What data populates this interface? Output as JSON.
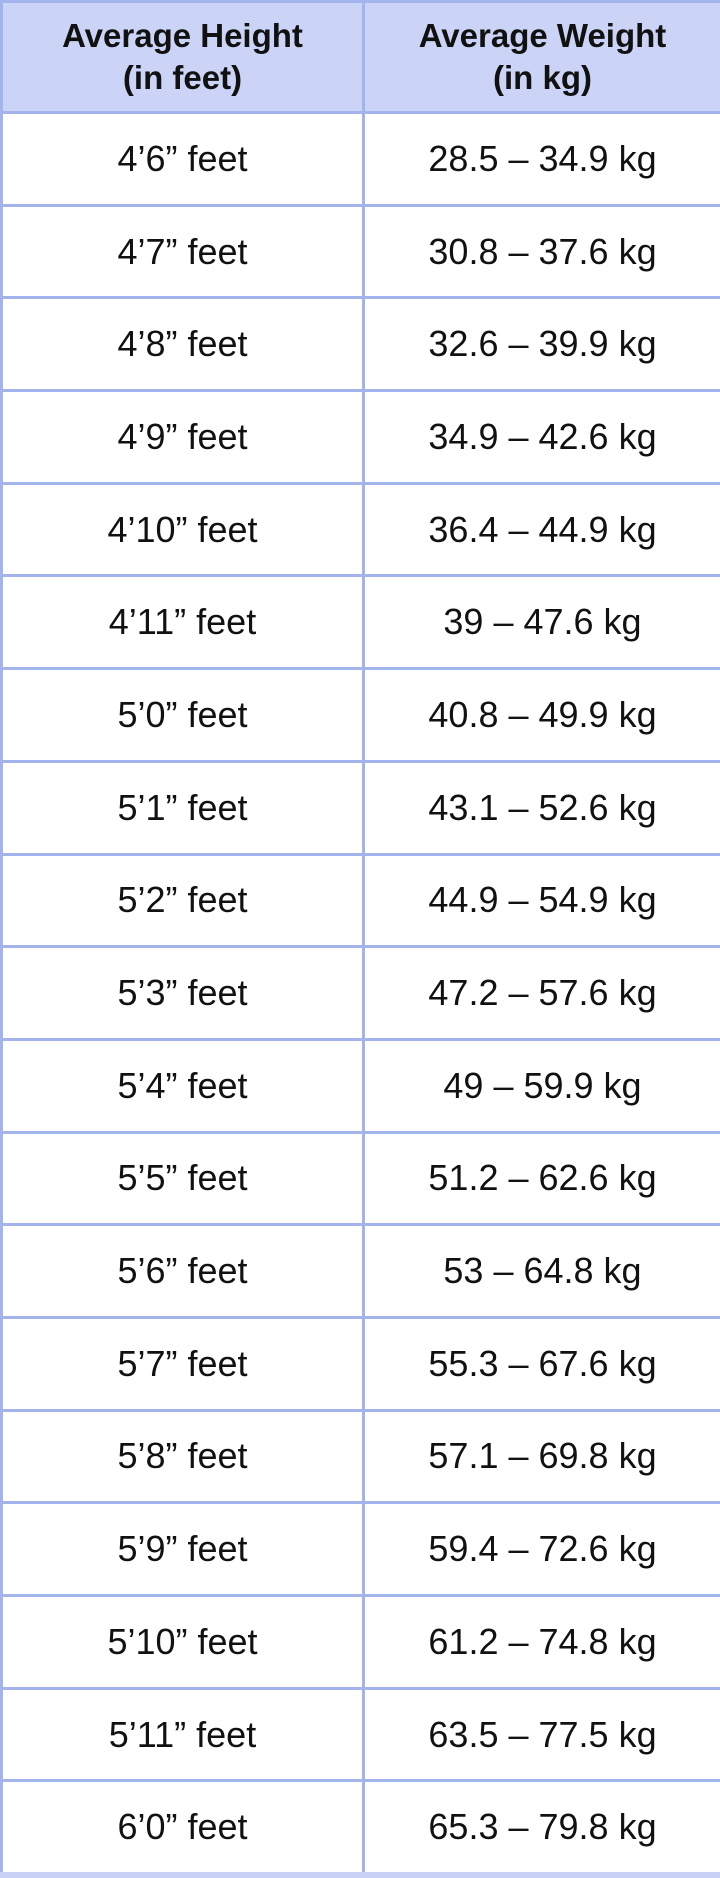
{
  "table": {
    "headers": [
      {
        "line1": "Average Height",
        "line2": "(in feet)"
      },
      {
        "line1": "Average Weight",
        "line2": "(in kg)"
      }
    ],
    "rows": [
      {
        "height": "4’6” feet",
        "weight": "28.5 – 34.9 kg"
      },
      {
        "height": "4’7” feet",
        "weight": "30.8 – 37.6 kg"
      },
      {
        "height": "4’8” feet",
        "weight": "32.6 – 39.9 kg"
      },
      {
        "height": "4’9” feet",
        "weight": "34.9 – 42.6 kg"
      },
      {
        "height": "4’10” feet",
        "weight": "36.4 – 44.9 kg"
      },
      {
        "height": "4’11” feet",
        "weight": "39 – 47.6 kg"
      },
      {
        "height": "5’0” feet",
        "weight": "40.8 – 49.9 kg"
      },
      {
        "height": "5’1” feet",
        "weight": "43.1 – 52.6 kg"
      },
      {
        "height": "5’2” feet",
        "weight": "44.9 – 54.9 kg"
      },
      {
        "height": "5’3” feet",
        "weight": "47.2 – 57.6 kg"
      },
      {
        "height": "5’4” feet",
        "weight": "49 – 59.9 kg"
      },
      {
        "height": "5’5” feet",
        "weight": "51.2 – 62.6 kg"
      },
      {
        "height": "5’6” feet",
        "weight": "53 – 64.8 kg"
      },
      {
        "height": "5’7” feet",
        "weight": "55.3 – 67.6 kg"
      },
      {
        "height": "5’8” feet",
        "weight": "57.1 – 69.8 kg"
      },
      {
        "height": "5’9” feet",
        "weight": "59.4 – 72.6 kg"
      },
      {
        "height": "5’10” feet",
        "weight": "61.2 – 74.8 kg"
      },
      {
        "height": "5’11” feet",
        "weight": "63.5 – 77.5 kg"
      },
      {
        "height": "6’0” feet",
        "weight": "65.3 – 79.8 kg"
      }
    ]
  },
  "colors": {
    "header_bg": "#cbd4f6",
    "border": "#a3b3ec"
  }
}
